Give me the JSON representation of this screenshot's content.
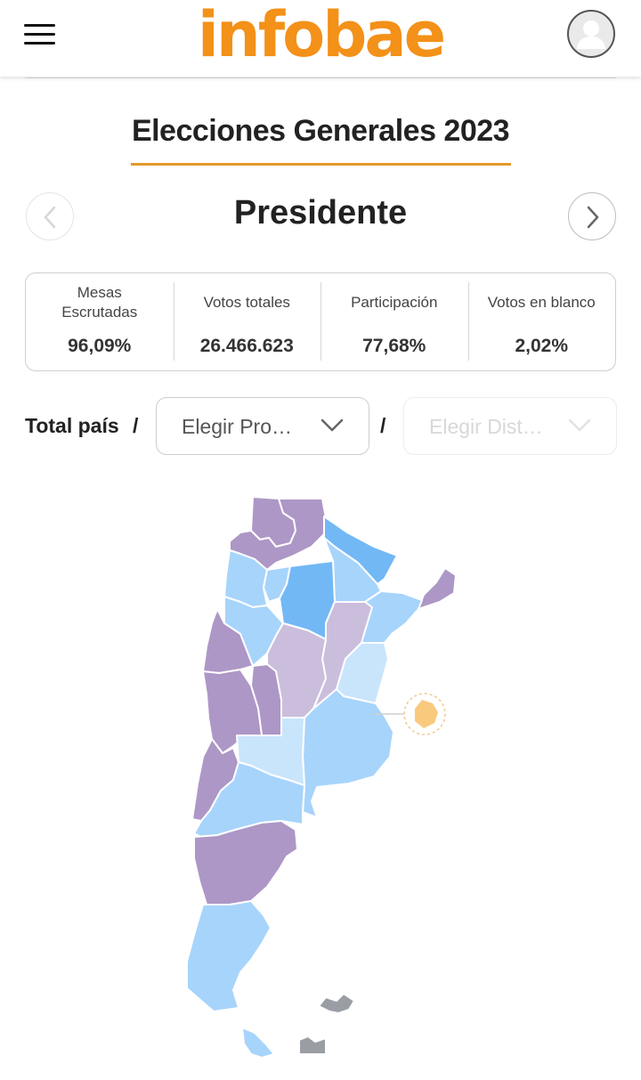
{
  "header": {
    "logo_text": "infobae",
    "menu_icon": "hamburger-icon",
    "avatar_icon": "user-avatar-icon"
  },
  "election": {
    "title": "Elecciones Generales 2023",
    "office": "Presidente"
  },
  "stats": [
    {
      "label": "Mesas Escrutadas",
      "value": "96,09%"
    },
    {
      "label": "Votos totales",
      "value": "26.466.623"
    },
    {
      "label": "Participación",
      "value": "77,68%"
    },
    {
      "label": "Votos en blanco",
      "value": "2,02%"
    }
  ],
  "location": {
    "scope_label": "Total país",
    "separator": "/",
    "province_select": {
      "value": "Elegir Pro…"
    },
    "district_select": {
      "value": "Elegir Dist…"
    }
  },
  "colors": {
    "brand": "#f39119",
    "underline": "#e39a2b",
    "purple": "#ad97c6",
    "light_purple": "#cbbedd",
    "light_blue": "#a7d4fb",
    "very_light_blue": "#c9e5fc",
    "blue": "#72b8f5",
    "orange": "#f9c97e",
    "gray": "#9a9ea4"
  }
}
